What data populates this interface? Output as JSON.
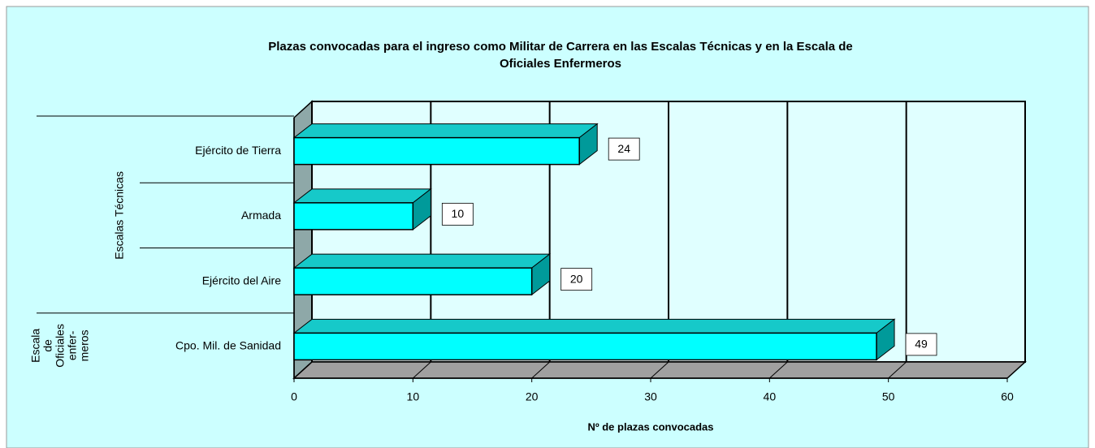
{
  "chart_data": {
    "type": "bar3d_horizontal",
    "title": "Plazas convocadas para el ingreso como Militar de Carrera en las Escalas Técnicas y en la Escala de",
    "title_line2": "Oficiales Enfermeros",
    "categories": [
      "Ejército de Tierra",
      "Armada",
      "Ejército del Aire",
      "Cpo. Mil. de Sanidad"
    ],
    "groups": [
      [
        "Escalas Técnicas"
      ],
      [
        "Escala",
        "de",
        "Oficiales",
        "enfer-",
        "meros"
      ]
    ],
    "values": [
      24,
      10,
      20,
      49
    ],
    "color": "#00ffff",
    "xlabel": "Nº de plazas convocadas",
    "xlim": [
      0,
      60
    ],
    "xticks": [
      0,
      10,
      20,
      30,
      40,
      50,
      60
    ],
    "grid": true
  }
}
